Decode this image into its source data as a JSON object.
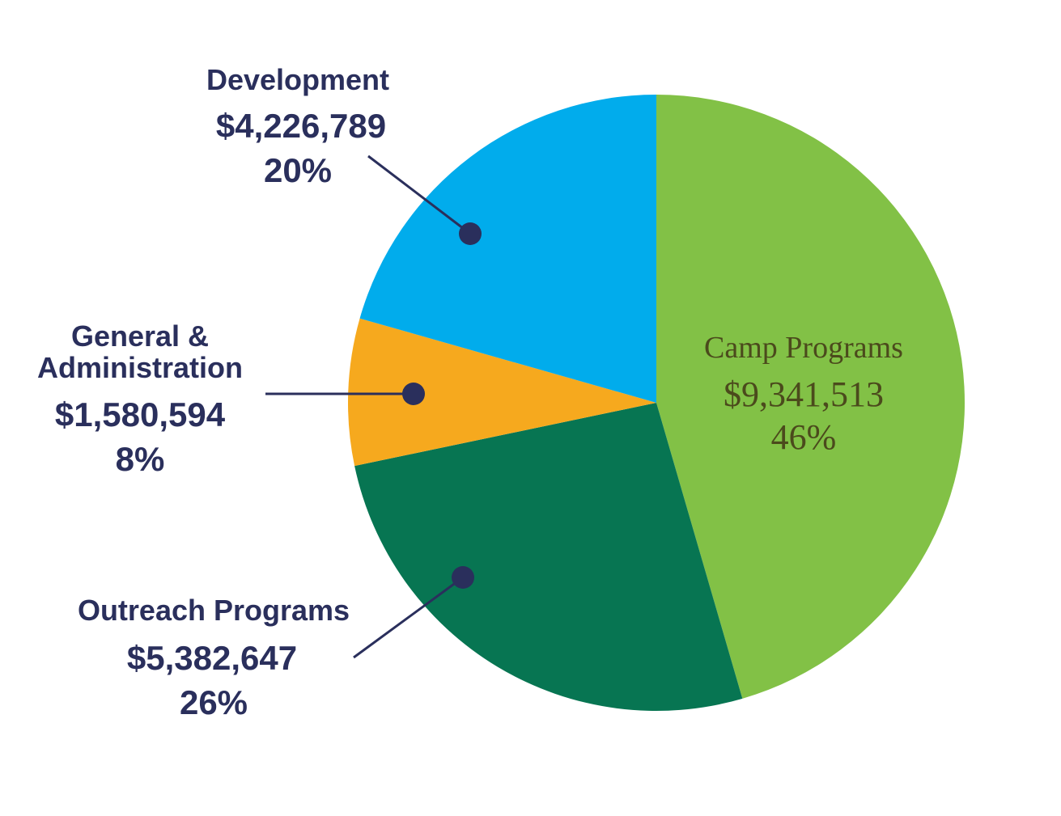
{
  "colors": {
    "text": "#2a2f5c",
    "camp_text": "#4b4a1c",
    "dot": "#2a2f5c"
  },
  "chart_data": {
    "type": "pie",
    "slices": [
      {
        "label": "Camp Programs",
        "amount": "$9,341,513",
        "value": 9341513,
        "percent": "46%",
        "color": "#82c146"
      },
      {
        "label": "Outreach Programs",
        "amount": "$5,382,647",
        "value": 5382647,
        "percent": "26%",
        "color": "#077552"
      },
      {
        "label": "General & Administration",
        "label_lines": [
          "General &",
          "Administration"
        ],
        "amount": "$1,580,594",
        "value": 1580594,
        "percent": "8%",
        "color": "#f6a91e"
      },
      {
        "label": "Development",
        "amount": "$4,226,789",
        "value": 4226789,
        "percent": "20%",
        "color": "#01acec"
      }
    ],
    "start": "12 o'clock",
    "direction": "clockwise"
  }
}
